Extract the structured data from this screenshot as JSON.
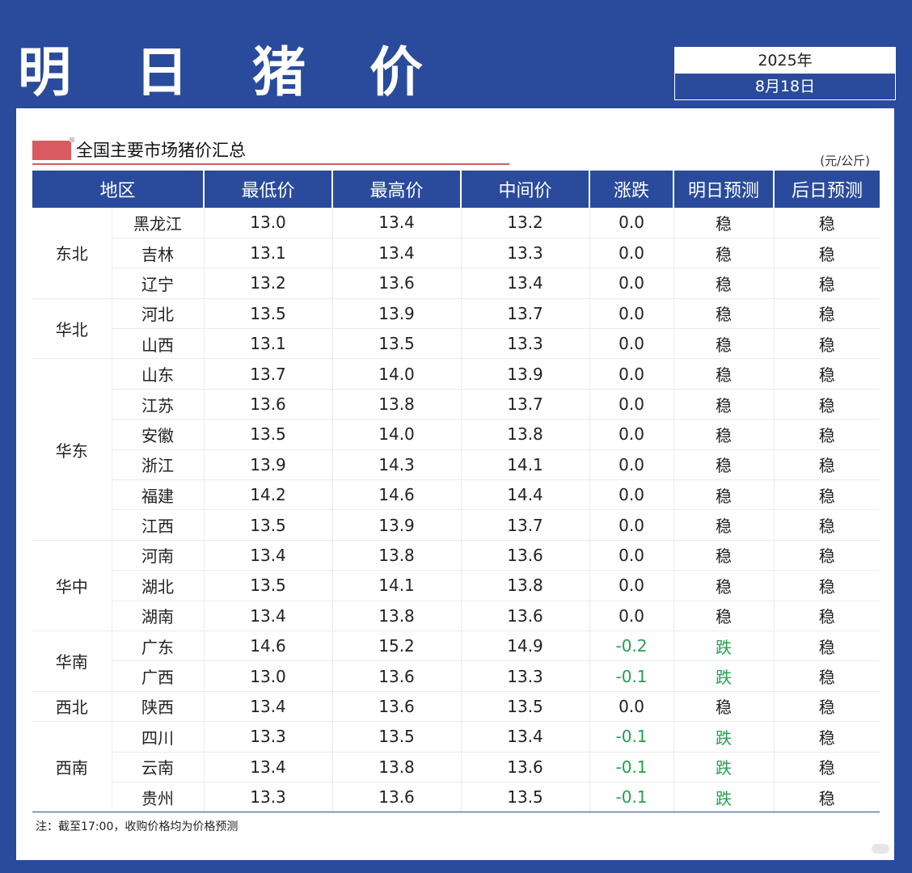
{
  "header": {
    "title": "明 日 猪 价",
    "year": "2025年",
    "date": "8月18日"
  },
  "section": {
    "title": "全国主要市场猪价汇总",
    "unit": "(元/公斤)"
  },
  "table": {
    "columns": [
      "地区",
      "最低价",
      "最高价",
      "中间价",
      "涨跌",
      "明日预测",
      "后日预测"
    ],
    "regions": [
      {
        "name": "东北",
        "rows": [
          {
            "province": "黑龙江",
            "low": "13.0",
            "high": "13.4",
            "mid": "13.2",
            "change": "0.0",
            "tomorrow": "稳",
            "after": "稳"
          },
          {
            "province": "吉林",
            "low": "13.1",
            "high": "13.4",
            "mid": "13.3",
            "change": "0.0",
            "tomorrow": "稳",
            "after": "稳"
          },
          {
            "province": "辽宁",
            "low": "13.2",
            "high": "13.6",
            "mid": "13.4",
            "change": "0.0",
            "tomorrow": "稳",
            "after": "稳"
          }
        ]
      },
      {
        "name": "华北",
        "rows": [
          {
            "province": "河北",
            "low": "13.5",
            "high": "13.9",
            "mid": "13.7",
            "change": "0.0",
            "tomorrow": "稳",
            "after": "稳"
          },
          {
            "province": "山西",
            "low": "13.1",
            "high": "13.5",
            "mid": "13.3",
            "change": "0.0",
            "tomorrow": "稳",
            "after": "稳"
          }
        ]
      },
      {
        "name": "华东",
        "rows": [
          {
            "province": "山东",
            "low": "13.7",
            "high": "14.0",
            "mid": "13.9",
            "change": "0.0",
            "tomorrow": "稳",
            "after": "稳"
          },
          {
            "province": "江苏",
            "low": "13.6",
            "high": "13.8",
            "mid": "13.7",
            "change": "0.0",
            "tomorrow": "稳",
            "after": "稳"
          },
          {
            "province": "安徽",
            "low": "13.5",
            "high": "14.0",
            "mid": "13.8",
            "change": "0.0",
            "tomorrow": "稳",
            "after": "稳"
          },
          {
            "province": "浙江",
            "low": "13.9",
            "high": "14.3",
            "mid": "14.1",
            "change": "0.0",
            "tomorrow": "稳",
            "after": "稳"
          },
          {
            "province": "福建",
            "low": "14.2",
            "high": "14.6",
            "mid": "14.4",
            "change": "0.0",
            "tomorrow": "稳",
            "after": "稳"
          },
          {
            "province": "江西",
            "low": "13.5",
            "high": "13.9",
            "mid": "13.7",
            "change": "0.0",
            "tomorrow": "稳",
            "after": "稳"
          }
        ]
      },
      {
        "name": "华中",
        "rows": [
          {
            "province": "河南",
            "low": "13.4",
            "high": "13.8",
            "mid": "13.6",
            "change": "0.0",
            "tomorrow": "稳",
            "after": "稳"
          },
          {
            "province": "湖北",
            "low": "13.5",
            "high": "14.1",
            "mid": "13.8",
            "change": "0.0",
            "tomorrow": "稳",
            "after": "稳"
          },
          {
            "province": "湖南",
            "low": "13.4",
            "high": "13.8",
            "mid": "13.6",
            "change": "0.0",
            "tomorrow": "稳",
            "after": "稳"
          }
        ]
      },
      {
        "name": "华南",
        "rows": [
          {
            "province": "广东",
            "low": "14.6",
            "high": "15.2",
            "mid": "14.9",
            "change": "-0.2",
            "tomorrow": "跌",
            "after": "稳"
          },
          {
            "province": "广西",
            "low": "13.0",
            "high": "13.6",
            "mid": "13.3",
            "change": "-0.1",
            "tomorrow": "跌",
            "after": "稳"
          }
        ]
      },
      {
        "name": "西北",
        "rows": [
          {
            "province": "陕西",
            "low": "13.4",
            "high": "13.6",
            "mid": "13.5",
            "change": "0.0",
            "tomorrow": "稳",
            "after": "稳"
          }
        ]
      },
      {
        "name": "西南",
        "rows": [
          {
            "province": "四川",
            "low": "13.3",
            "high": "13.5",
            "mid": "13.4",
            "change": "-0.1",
            "tomorrow": "跌",
            "after": "稳"
          },
          {
            "province": "云南",
            "low": "13.4",
            "high": "13.8",
            "mid": "13.6",
            "change": "-0.1",
            "tomorrow": "跌",
            "after": "稳"
          },
          {
            "province": "贵州",
            "low": "13.3",
            "high": "13.6",
            "mid": "13.5",
            "change": "-0.1",
            "tomorrow": "跌",
            "after": "稳"
          }
        ]
      }
    ]
  },
  "footnote": "注：截至17:00，收购价格均为价格预测",
  "colors": {
    "brand": "#2a4b9b",
    "accent": "#d95a60",
    "down": "#22a14f"
  }
}
